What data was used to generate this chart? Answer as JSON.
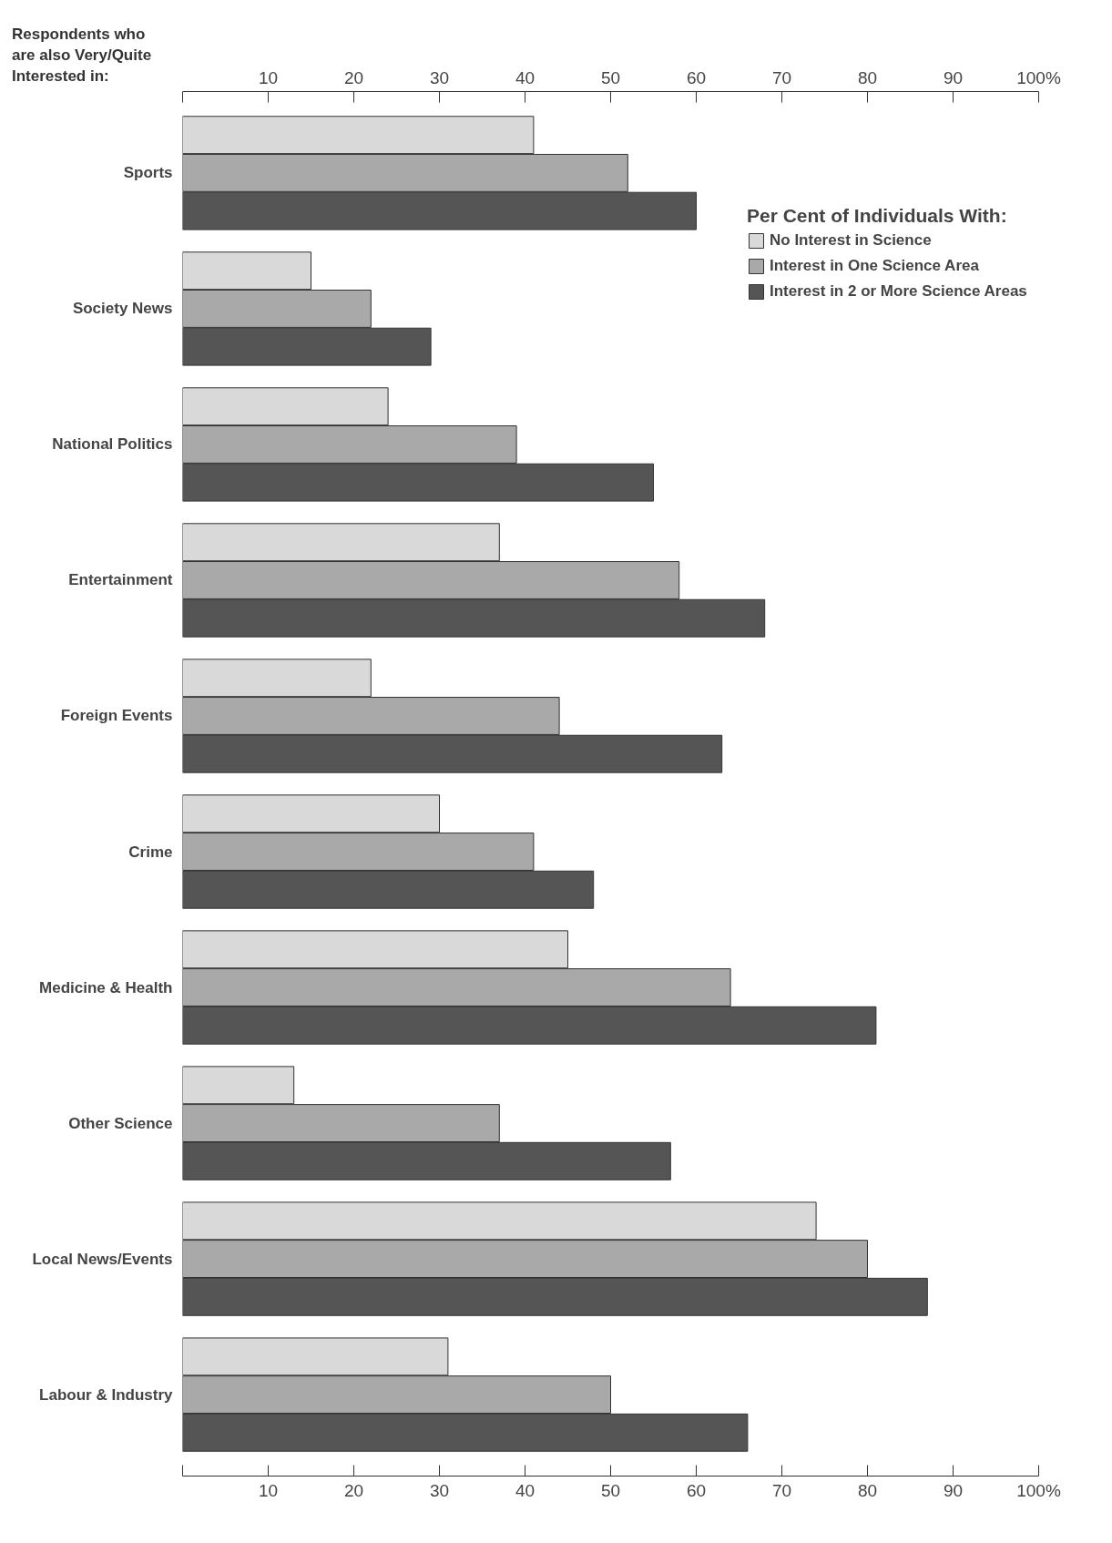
{
  "chart_data": {
    "type": "bar",
    "orientation": "horizontal",
    "ylabel": "Respondents who\nare also Very/Quite\nInterested in:",
    "legend_title": "Per Cent of Individuals With:",
    "legend": "top right",
    "categories": [
      "Sports",
      "Society News",
      "National Politics",
      "Entertainment",
      "Foreign Events",
      "Crime",
      "Medicine & Health",
      "Other Science",
      "Local News/Events",
      "Labour & Industry"
    ],
    "series": [
      {
        "name": "No Interest in Science",
        "color": "#d9d9d9",
        "values": [
          41,
          15,
          24,
          37,
          22,
          30,
          45,
          13,
          74,
          31
        ]
      },
      {
        "name": "Interest in One Science Area",
        "color": "#a9a9a9",
        "values": [
          52,
          22,
          39,
          58,
          44,
          41,
          64,
          37,
          80,
          50
        ]
      },
      {
        "name": "Interest in 2 or More Science Areas",
        "color": "#555555",
        "values": [
          60,
          29,
          55,
          68,
          63,
          48,
          81,
          57,
          87,
          66
        ]
      }
    ],
    "xlim": [
      0,
      100
    ],
    "xticks": [
      {
        "value": 0,
        "label": null
      },
      10,
      20,
      30,
      40,
      50,
      60,
      70,
      80,
      90,
      {
        "value": 100,
        "label": "100%"
      }
    ],
    "x2lim": [
      0,
      100
    ],
    "x2ticks": [
      {
        "value": 0,
        "label": null
      },
      10,
      20,
      30,
      40,
      50,
      60,
      70,
      80,
      90,
      {
        "value": 100,
        "label": "100%"
      }
    ],
    "grid": false
  }
}
